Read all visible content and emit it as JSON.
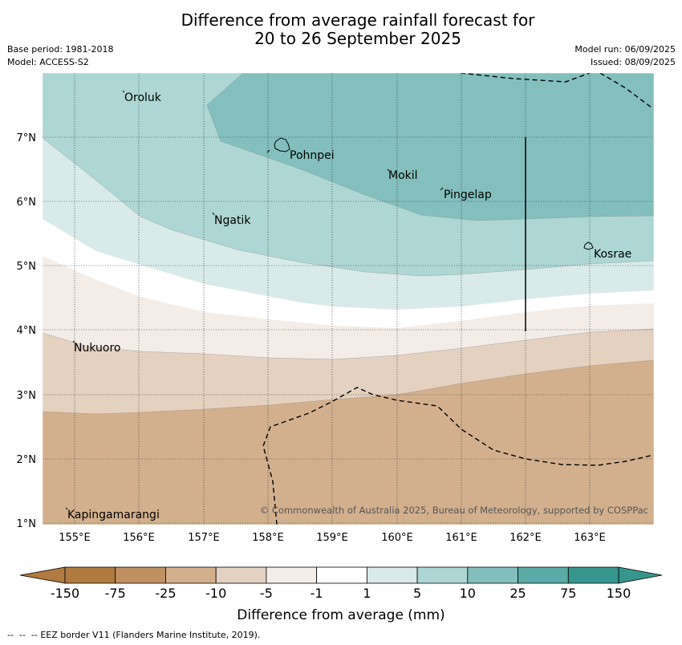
{
  "header": {
    "title_line1": "Difference from average rainfall forecast for",
    "title_line2": "20 to 26 September 2025",
    "base_period": "Base period: 1981-2018",
    "model": "Model: ACCESS-S2",
    "model_run": "Model run: 06/09/2025",
    "issued": "Issued: 08/09/2025"
  },
  "map": {
    "lat_labels": [
      "7°N",
      "6°N",
      "5°N",
      "4°N",
      "3°N",
      "2°N",
      "1°N"
    ],
    "lon_labels": [
      "155°E",
      "156°E",
      "157°E",
      "158°E",
      "159°E",
      "160°E",
      "161°E",
      "162°E",
      "163°E"
    ],
    "places": [
      "Oroluk",
      "Pohnpei",
      "Mokil",
      "Pingelap",
      "Ngatik",
      "Kosrae",
      "Nukuoro",
      "Kapingamarangi"
    ],
    "copyright": "© Commonwealth of Australia 2025, Bureau of Meteorology, supported by COSPPac"
  },
  "colorbar": {
    "ticks": [
      "-150",
      "-75",
      "-25",
      "-10",
      "-5",
      "-1",
      "1",
      "5",
      "10",
      "25",
      "75",
      "150"
    ],
    "colors": [
      "#b07a40",
      "#c09060",
      "#d2b08e",
      "#e4d1bf",
      "#f4ece6",
      "#ffffff",
      "#d8eae9",
      "#add6d4",
      "#83bfbd",
      "#5aaaa7",
      "#36968f"
    ],
    "label": "Difference from average (mm)"
  },
  "legend": {
    "eez": "EEZ border V11 (Flanders Marine Institute, 2019)."
  }
}
